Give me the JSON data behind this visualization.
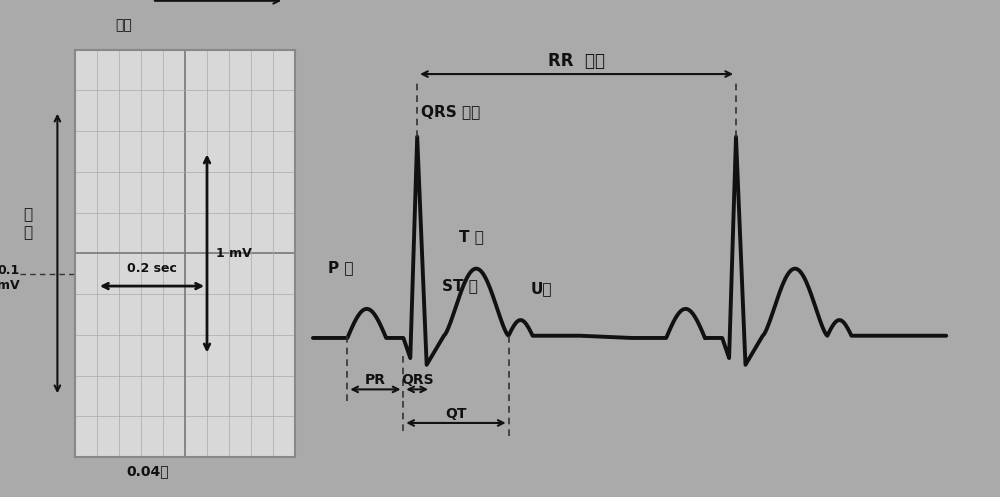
{
  "bg_color": "#aaaaaa",
  "inset_bg": "#d8d8d8",
  "ecg_color": "#111111",
  "text_color": "#111111",
  "arrow_color": "#111111",
  "dashed_color": "#333333",
  "figsize": [
    10.0,
    4.97
  ],
  "dpi": 100,
  "labels": {
    "time_arrow": "时间",
    "voltage": "电\n压",
    "voltage_label": "0.1\nmV",
    "time_small": "0.04秒",
    "scale_h": "1 mV",
    "scale_w": "0.2 sec",
    "p_wave": "P 波",
    "qrs_complex": "QRS 波群",
    "st_segment": "ST 段",
    "t_wave": "T 波",
    "u_wave": "U波",
    "rr_interval": "RR  间期",
    "pr_interval": "PR",
    "qrs_interval": "QRS",
    "qt_interval": "QT"
  }
}
